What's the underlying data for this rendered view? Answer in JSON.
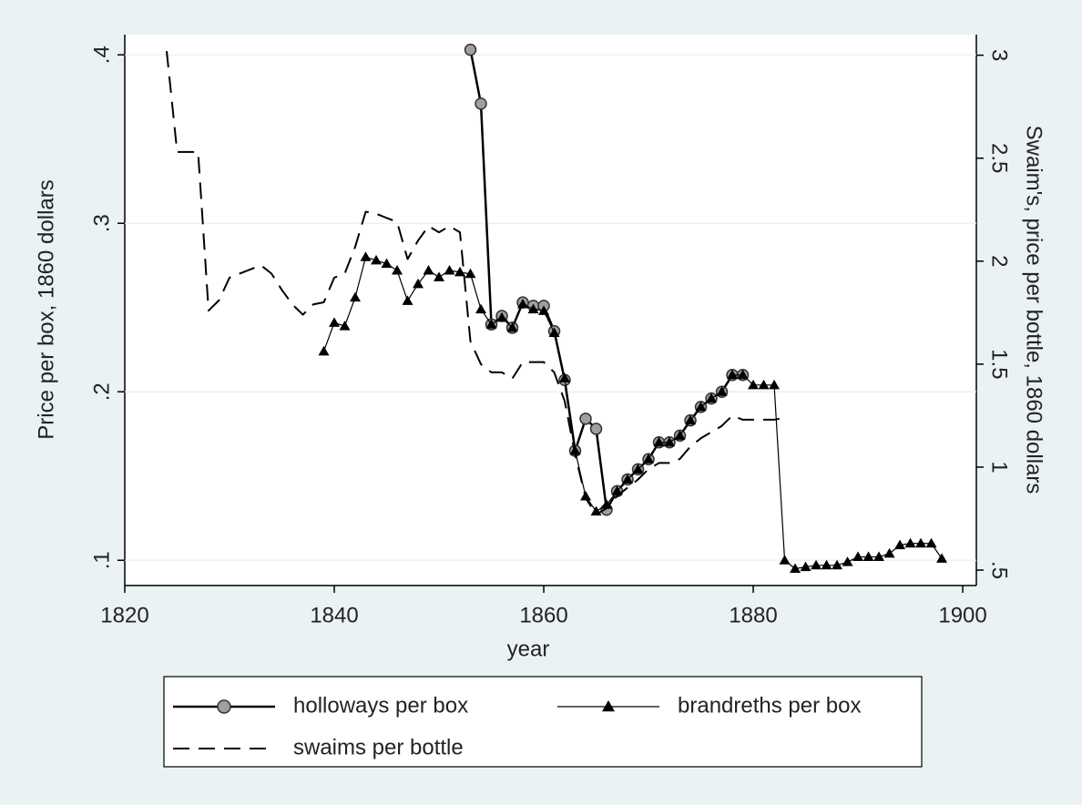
{
  "chart_data": {
    "type": "line",
    "xlabel": "year",
    "ylabel": "Price per box, 1860 dollars",
    "y2label": "Swaim's, price per bottle, 1860 dollars",
    "xlim": [
      1820,
      1901.3
    ],
    "xticks": [
      1820,
      1840,
      1860,
      1880,
      1900
    ],
    "ylim": [
      0.085,
      0.412
    ],
    "yticks": [
      {
        "value": 0.1,
        "label": ".1"
      },
      {
        "value": 0.2,
        "label": ".2"
      },
      {
        "value": 0.3,
        "label": ".3"
      },
      {
        "value": 0.4,
        "label": ".4"
      }
    ],
    "y2lim": [
      0.425,
      3.1
    ],
    "y2ticks": [
      {
        "value": 0.5,
        "label": ".5"
      },
      1,
      1.5,
      2,
      2.5,
      3
    ],
    "grid": true,
    "legend": "bottom",
    "series": [
      {
        "name": "holloways per box",
        "color": "#000000",
        "marker": "circle",
        "dash": false,
        "line_width": 2.5,
        "x": [
          1853,
          1854,
          1855,
          1856,
          1857,
          1858,
          1859,
          1860,
          1861,
          1862,
          1863,
          1864,
          1865,
          1866,
          1867,
          1868,
          1869,
          1870,
          1871,
          1872,
          1873,
          1874,
          1875,
          1876,
          1877,
          1878,
          1879
        ],
        "values": [
          0.403,
          0.371,
          0.24,
          0.245,
          0.238,
          0.253,
          0.251,
          0.251,
          0.236,
          0.207,
          0.165,
          0.184,
          0.178,
          0.13,
          0.141,
          0.148,
          0.154,
          0.16,
          0.17,
          0.17,
          0.174,
          0.183,
          0.191,
          0.196,
          0.2,
          0.21,
          0.21
        ]
      },
      {
        "name": "brandreths per box",
        "color": "#000000",
        "marker": "triangle",
        "dash": false,
        "line_width": 1.2,
        "x": [
          1839,
          1840,
          1841,
          1842,
          1843,
          1844,
          1845,
          1846,
          1847,
          1848,
          1849,
          1850,
          1851,
          1852,
          1853,
          1854,
          1855,
          1856,
          1857,
          1858,
          1859,
          1860,
          1861,
          1862,
          1863,
          1864,
          1865,
          1866,
          1867,
          1868,
          1869,
          1870,
          1871,
          1872,
          1873,
          1874,
          1875,
          1876,
          1877,
          1878,
          1879,
          1880,
          1881,
          1882,
          1883,
          1884,
          1885,
          1886,
          1887,
          1888,
          1889,
          1890,
          1891,
          1892,
          1893,
          1894,
          1895,
          1896,
          1897,
          1898
        ],
        "values": [
          0.224,
          0.241,
          0.239,
          0.256,
          0.28,
          0.278,
          0.276,
          0.272,
          0.254,
          0.264,
          0.272,
          0.268,
          0.272,
          0.271,
          0.27,
          0.249,
          0.24,
          0.244,
          0.238,
          0.252,
          0.249,
          0.248,
          0.235,
          0.208,
          0.165,
          0.138,
          0.129,
          0.133,
          0.141,
          0.148,
          0.154,
          0.16,
          0.17,
          0.17,
          0.174,
          0.183,
          0.191,
          0.196,
          0.2,
          0.21,
          0.21,
          0.204,
          0.204,
          0.204,
          0.1,
          0.095,
          0.096,
          0.097,
          0.097,
          0.097,
          0.099,
          0.102,
          0.102,
          0.102,
          0.104,
          0.109,
          0.11,
          0.11,
          0.11,
          0.101
        ]
      },
      {
        "name": "swaims per bottle",
        "color": "#000000",
        "marker": "none",
        "dash": true,
        "line_width": 2,
        "axis": "y2",
        "x": [
          1824,
          1825,
          1826,
          1827,
          1828,
          1829,
          1830,
          1831,
          1833,
          1834,
          1835,
          1836,
          1837,
          1838,
          1839,
          1840,
          1841,
          1842,
          1843,
          1844,
          1845,
          1846,
          1847,
          1848,
          1849,
          1850,
          1851,
          1852,
          1853,
          1854,
          1855,
          1856,
          1857,
          1858,
          1859,
          1860,
          1861,
          1862,
          1863,
          1864,
          1865,
          1866,
          1867,
          1868,
          1869,
          1870,
          1871,
          1872,
          1873,
          1874,
          1875,
          1876,
          1877,
          1878,
          1879,
          1880,
          1881,
          1882,
          1883
        ],
        "values": [
          3.02,
          2.53,
          2.53,
          2.53,
          1.76,
          1.81,
          1.92,
          1.94,
          1.98,
          1.94,
          1.86,
          1.79,
          1.74,
          1.79,
          1.8,
          1.92,
          1.94,
          2.07,
          2.24,
          2.23,
          2.21,
          2.19,
          2.01,
          2.1,
          2.17,
          2.14,
          2.17,
          2.14,
          1.61,
          1.5,
          1.46,
          1.46,
          1.43,
          1.51,
          1.51,
          1.51,
          1.46,
          1.32,
          1.06,
          0.85,
          0.77,
          0.8,
          0.86,
          0.9,
          0.94,
          0.99,
          1.02,
          1.02,
          1.04,
          1.1,
          1.14,
          1.17,
          1.2,
          1.25,
          1.23,
          1.23,
          1.23,
          1.23,
          1.24
        ]
      }
    ]
  }
}
